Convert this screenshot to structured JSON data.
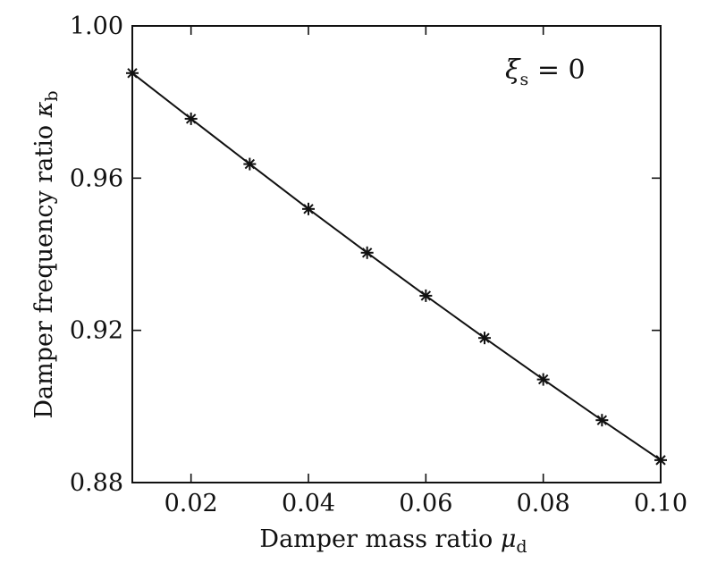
{
  "chart_data": {
    "type": "line",
    "markers": "asterisk",
    "grid": false,
    "x": [
      0.01,
      0.02,
      0.03,
      0.04,
      0.05,
      0.06,
      0.07,
      0.08,
      0.09,
      0.1
    ],
    "series": [
      {
        "values": [
          0.9876,
          0.9756,
          0.9637,
          0.9519,
          0.9404,
          0.9291,
          0.918,
          0.9071,
          0.8964,
          0.8859
        ]
      }
    ],
    "xlim": [
      0.01,
      0.1
    ],
    "ylim": [
      0.88,
      1.0
    ],
    "xticks": [
      0.02,
      0.04,
      0.06,
      0.08,
      0.1
    ],
    "xtick_labels": [
      "0.02",
      "0.04",
      "0.06",
      "0.08",
      "0.10"
    ],
    "yticks": [
      0.88,
      0.92,
      0.96,
      1.0
    ],
    "ytick_labels": [
      "0.88",
      "0.92",
      "0.96",
      "1.00"
    ],
    "xlabel": {
      "text": "Damper mass ratio ",
      "symbol": "μ",
      "subscript": "d"
    },
    "ylabel": {
      "text": "Damper frequency ratio ",
      "symbol": "κ",
      "subscript": "b"
    },
    "annotation": {
      "symbol": "ξ",
      "subscript": "s",
      "rest": " = 0"
    },
    "colors": {
      "line": "#111111",
      "axes": "#111111",
      "background": "#ffffff"
    }
  }
}
